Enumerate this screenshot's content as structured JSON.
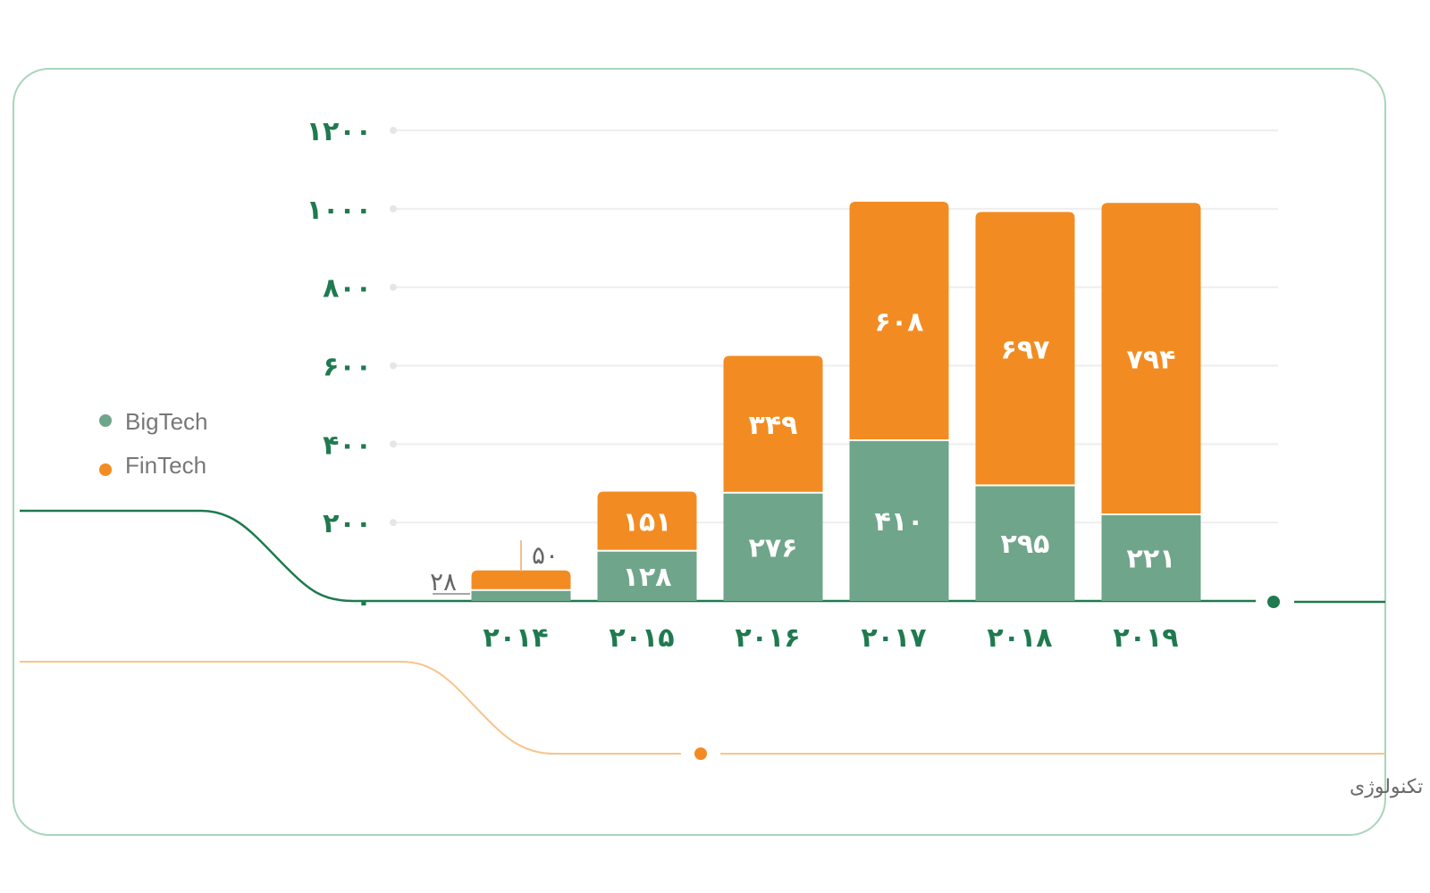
{
  "colors": {
    "bigtech": "#6fa58a",
    "fintech": "#f28c22",
    "axis": "#1f7a4f",
    "frame": "#a8d5bc",
    "grid": "#eeeeee"
  },
  "legend": [
    {
      "name": "BigTech",
      "color": "#6fa58a"
    },
    {
      "name": "FinTech",
      "color": "#f28c22"
    }
  ],
  "caption": "میزان اعتبار داده‌شده توسط فین‌تک و شرکت‌های بزرگ تکنولوژی",
  "chart_data": {
    "type": "bar",
    "stacked": true,
    "categories": [
      "۲۰۱۴",
      "۲۰۱۵",
      "۲۰۱۶",
      "۲۰۱۷",
      "۲۰۱۸",
      "۲۰۱۹"
    ],
    "series": [
      {
        "name": "BigTech",
        "values": [
          28,
          128,
          276,
          410,
          295,
          221
        ],
        "labels": [
          "۲۸",
          "۱۲۸",
          "۲۷۶",
          "۴۱۰",
          "۲۹۵",
          "۲۲۱"
        ]
      },
      {
        "name": "FinTech",
        "values": [
          50,
          151,
          349,
          608,
          697,
          794
        ],
        "labels": [
          "۵۰",
          "۱۵۱",
          "۳۴۹",
          "۶۰۸",
          "۶۹۷",
          "۷۹۴"
        ]
      }
    ],
    "ylim": [
      0,
      1200
    ],
    "yticks": [
      0,
      200,
      400,
      600,
      800,
      1000,
      1200
    ],
    "ytick_labels": [
      "۰",
      "۲۰۰",
      "۴۰۰",
      "۶۰۰",
      "۸۰۰",
      "۱۰۰۰",
      "۱۲۰۰"
    ],
    "grid": true,
    "legend_position": "left"
  }
}
